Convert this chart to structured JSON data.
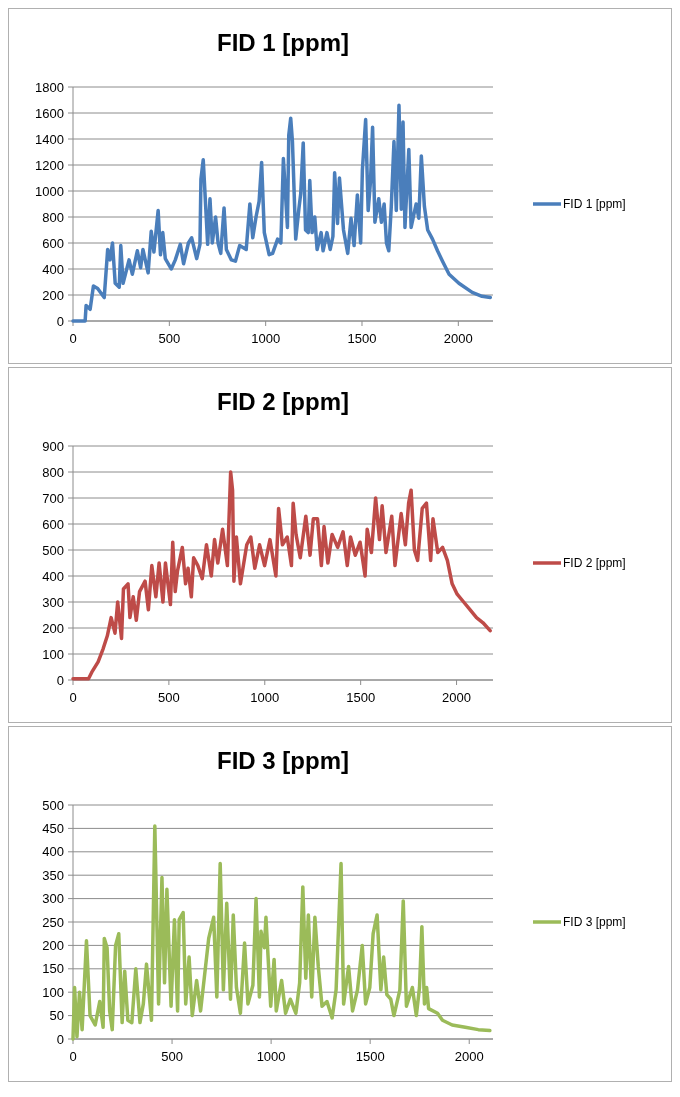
{
  "chart_data": [
    {
      "type": "line",
      "title": "FID 1 [ppm]",
      "xlim": [
        0,
        2180
      ],
      "xticks": [
        0,
        500,
        1000,
        1500,
        2000
      ],
      "ylim": [
        0,
        1800
      ],
      "yticks": [
        0,
        200,
        400,
        600,
        800,
        1000,
        1200,
        1400,
        1600,
        1800
      ],
      "grid": "y",
      "legend": "right",
      "series": [
        {
          "name": "FID 1 [ppm]",
          "color": "#4a7ebb",
          "x": [
            0,
            63,
            68,
            89,
            106,
            128,
            162,
            180,
            192,
            205,
            219,
            240,
            248,
            260,
            291,
            308,
            334,
            351,
            363,
            390,
            406,
            420,
            442,
            454,
            466,
            479,
            510,
            531,
            557,
            574,
            599,
            616,
            642,
            659,
            664,
            676,
            699,
            711,
            723,
            740,
            753,
            767,
            784,
            796,
            822,
            843,
            865,
            899,
            918,
            933,
            950,
            966,
            979,
            993,
            1018,
            1036,
            1062,
            1079,
            1092,
            1113,
            1120,
            1130,
            1139,
            1156,
            1173,
            1182,
            1195,
            1207,
            1221,
            1229,
            1241,
            1255,
            1267,
            1288,
            1298,
            1318,
            1335,
            1349,
            1358,
            1373,
            1383,
            1404,
            1426,
            1443,
            1459,
            1476,
            1493,
            1502,
            1519,
            1532,
            1544,
            1555,
            1567,
            1587,
            1601,
            1615,
            1627,
            1639,
            1652,
            1666,
            1678,
            1692,
            1704,
            1713,
            1723,
            1743,
            1755,
            1781,
            1795,
            1808,
            1824,
            1841,
            1866,
            1892,
            1918,
            1952,
            2003,
            2072,
            2123,
            2166
          ],
          "values": [
            0,
            0,
            120,
            90,
            270,
            250,
            180,
            550,
            470,
            600,
            290,
            260,
            580,
            290,
            470,
            360,
            540,
            410,
            550,
            370,
            690,
            530,
            850,
            510,
            680,
            480,
            400,
            470,
            590,
            440,
            600,
            640,
            480,
            590,
            1090,
            1240,
            590,
            940,
            600,
            800,
            600,
            520,
            870,
            550,
            470,
            460,
            580,
            550,
            900,
            640,
            800,
            920,
            1220,
            680,
            510,
            520,
            630,
            600,
            1250,
            720,
            1430,
            1560,
            1380,
            630,
            870,
            980,
            1370,
            700,
            680,
            1080,
            680,
            800,
            550,
            680,
            540,
            680,
            550,
            650,
            1140,
            750,
            1100,
            700,
            520,
            790,
            580,
            970,
            600,
            1160,
            1550,
            850,
            1070,
            1490,
            760,
            940,
            760,
            900,
            600,
            540,
            880,
            1380,
            850,
            1660,
            860,
            1530,
            720,
            1320,
            720,
            900,
            790,
            1270,
            880,
            700,
            630,
            540,
            460,
            360,
            290,
            220,
            190,
            180
          ]
        }
      ]
    },
    {
      "type": "line",
      "title": "FID 2 [ppm]",
      "xlim": [
        0,
        2190
      ],
      "xticks": [
        0,
        500,
        1000,
        1500,
        2000
      ],
      "ylim": [
        0,
        900
      ],
      "yticks": [
        0,
        100,
        200,
        300,
        400,
        500,
        600,
        700,
        800,
        900
      ],
      "grid": "y",
      "legend": "right",
      "series": [
        {
          "name": "FID 2 [ppm]",
          "color": "#be4b48",
          "x": [
            0,
            81,
            98,
            131,
            157,
            179,
            199,
            219,
            233,
            253,
            263,
            287,
            297,
            314,
            330,
            347,
            376,
            393,
            411,
            432,
            449,
            469,
            482,
            508,
            520,
            533,
            545,
            570,
            587,
            600,
            617,
            629,
            651,
            674,
            696,
            721,
            738,
            755,
            780,
            805,
            822,
            832,
            839,
            852,
            873,
            906,
            927,
            948,
            973,
            999,
            1027,
            1058,
            1072,
            1092,
            1117,
            1139,
            1148,
            1163,
            1185,
            1214,
            1236,
            1253,
            1275,
            1295,
            1309,
            1329,
            1351,
            1380,
            1408,
            1430,
            1447,
            1472,
            1497,
            1523,
            1534,
            1556,
            1578,
            1598,
            1612,
            1632,
            1662,
            1679,
            1711,
            1733,
            1750,
            1763,
            1780,
            1797,
            1821,
            1843,
            1865,
            1877,
            1902,
            1927,
            1952,
            1977,
            2003,
            2037,
            2071,
            2104,
            2138,
            2175
          ],
          "values": [
            5,
            5,
            30,
            70,
            120,
            170,
            240,
            180,
            300,
            160,
            350,
            370,
            240,
            320,
            230,
            340,
            380,
            270,
            440,
            320,
            450,
            300,
            450,
            290,
            530,
            340,
            420,
            510,
            370,
            430,
            320,
            470,
            440,
            390,
            520,
            400,
            540,
            450,
            580,
            440,
            800,
            730,
            380,
            550,
            370,
            520,
            550,
            430,
            520,
            440,
            540,
            400,
            660,
            520,
            550,
            440,
            680,
            560,
            470,
            630,
            480,
            620,
            620,
            440,
            590,
            450,
            560,
            510,
            570,
            440,
            550,
            480,
            530,
            400,
            580,
            490,
            700,
            540,
            670,
            490,
            630,
            440,
            640,
            520,
            680,
            730,
            500,
            460,
            660,
            680,
            460,
            620,
            490,
            510,
            460,
            370,
            330,
            300,
            270,
            240,
            220,
            190
          ]
        }
      ]
    },
    {
      "type": "line",
      "title": "FID 3 [ppm]",
      "xlim": [
        0,
        2120
      ],
      "xticks": [
        0,
        500,
        1000,
        1500,
        2000
      ],
      "ylim": [
        0,
        500
      ],
      "yticks": [
        0,
        50,
        100,
        150,
        200,
        250,
        300,
        350,
        400,
        450,
        500
      ],
      "grid": "y",
      "legend": "right",
      "series": [
        {
          "name": "FID 3 [ppm]",
          "color": "#9bbb59",
          "x": [
            0,
            8,
            20,
            33,
            46,
            68,
            86,
            112,
            135,
            152,
            158,
            172,
            185,
            198,
            215,
            231,
            248,
            261,
            277,
            297,
            317,
            338,
            355,
            371,
            396,
            413,
            432,
            449,
            462,
            474,
            495,
            512,
            528,
            536,
            556,
            569,
            586,
            602,
            624,
            644,
            685,
            710,
            726,
            743,
            759,
            776,
            795,
            809,
            825,
            845,
            866,
            883,
            908,
            924,
            941,
            949,
            966,
            974,
            998,
            1015,
            1026,
            1053,
            1073,
            1097,
            1125,
            1144,
            1160,
            1175,
            1188,
            1205,
            1221,
            1238,
            1257,
            1282,
            1308,
            1328,
            1353,
            1366,
            1391,
            1411,
            1436,
            1460,
            1477,
            1498,
            1515,
            1535,
            1554,
            1568,
            1584,
            1604,
            1620,
            1650,
            1667,
            1683,
            1713,
            1733,
            1749,
            1761,
            1774,
            1785,
            1795,
            1840,
            1865,
            1914,
            1980,
            2046,
            2104
          ],
          "values": [
            0,
            110,
            5,
            100,
            20,
            210,
            50,
            30,
            80,
            25,
            215,
            195,
            60,
            20,
            200,
            225,
            35,
            145,
            40,
            35,
            150,
            35,
            75,
            160,
            40,
            455,
            75,
            345,
            120,
            320,
            70,
            255,
            60,
            255,
            270,
            75,
            175,
            50,
            125,
            60,
            215,
            260,
            90,
            375,
            105,
            290,
            85,
            265,
            110,
            55,
            205,
            75,
            115,
            300,
            90,
            230,
            195,
            260,
            70,
            170,
            60,
            125,
            55,
            85,
            55,
            120,
            325,
            130,
            265,
            90,
            260,
            155,
            70,
            80,
            45,
            105,
            375,
            75,
            155,
            60,
            105,
            200,
            75,
            110,
            225,
            265,
            105,
            175,
            95,
            85,
            50,
            105,
            295,
            70,
            110,
            50,
            110,
            240,
            75,
            110,
            65,
            55,
            40,
            30,
            25,
            20,
            18
          ]
        }
      ]
    }
  ]
}
